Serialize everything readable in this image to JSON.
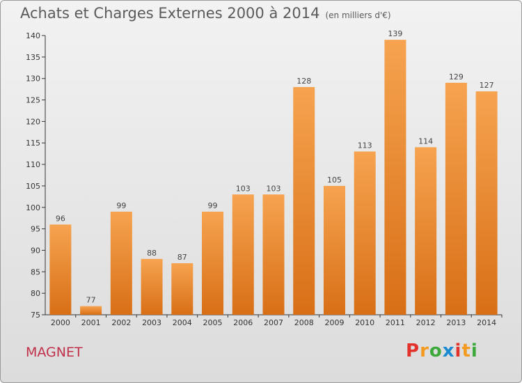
{
  "header": {
    "title": "Achats et Charges Externes 2000 à 2014",
    "subtitle": "(en milliers d'€)"
  },
  "footer": {
    "commune": "MAGNET",
    "brand": "Proxiti"
  },
  "colors": {
    "bar_light": "#f6a350",
    "bar_dark": "#d86f16",
    "axis": "#333333",
    "logo": [
      "#e3322b",
      "#f39a1f",
      "#3ea93b",
      "#1a8ad1",
      "#e3322b",
      "#f39a1f",
      "#3ea93b"
    ]
  },
  "chart_data": {
    "type": "bar",
    "title": "Achats et Charges Externes 2000 à 2014",
    "xlabel": "",
    "ylabel": "",
    "categories": [
      "2000",
      "2001",
      "2002",
      "2003",
      "2004",
      "2005",
      "2006",
      "2007",
      "2008",
      "2009",
      "2010",
      "2011",
      "2012",
      "2013",
      "2014"
    ],
    "values": [
      96,
      77,
      99,
      88,
      87,
      99,
      103,
      103,
      128,
      105,
      113,
      139,
      114,
      129,
      127
    ],
    "ylim": [
      75,
      140
    ],
    "yticks": [
      75,
      80,
      85,
      90,
      95,
      100,
      105,
      110,
      115,
      120,
      125,
      130,
      135,
      140
    ],
    "grid": false,
    "legend": "none"
  }
}
